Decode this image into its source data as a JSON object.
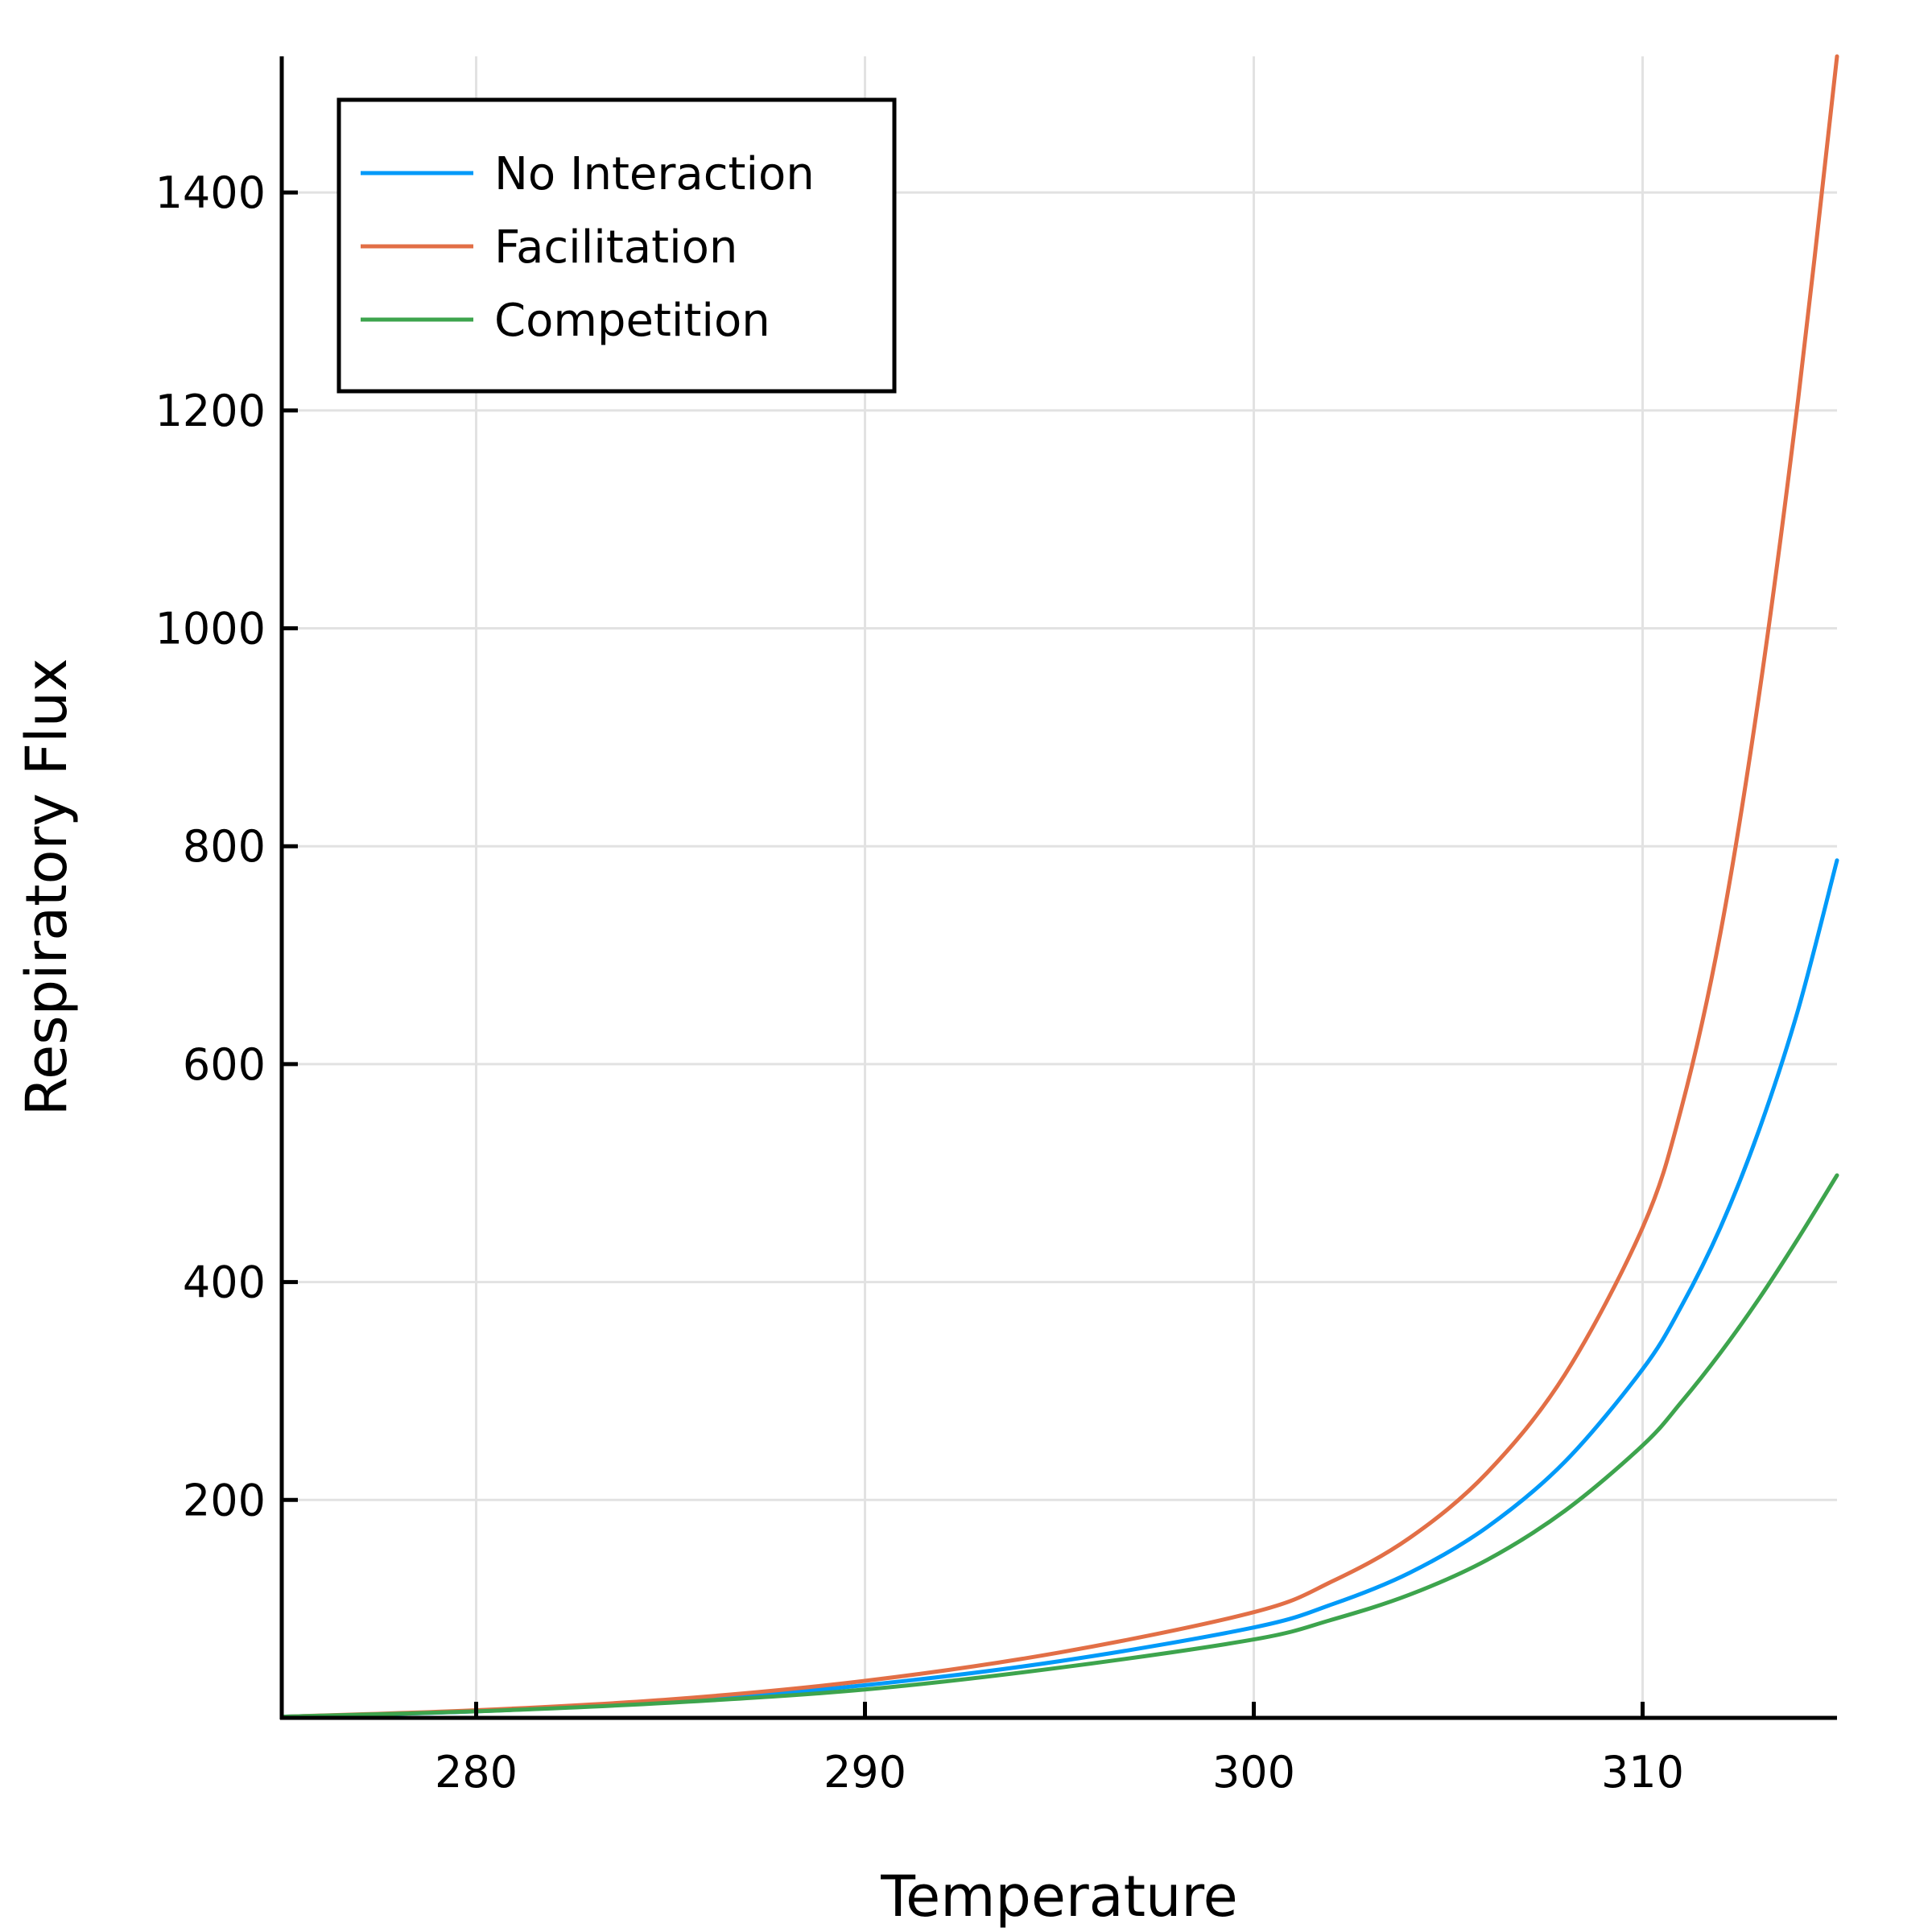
{
  "chart_data": {
    "type": "line",
    "title": "",
    "xlabel": "Temperature",
    "ylabel": "Respiratory Flux",
    "xlim": [
      275,
      315
    ],
    "ylim": [
      0,
      1525
    ],
    "xticks": [
      280,
      290,
      300,
      310
    ],
    "yticks": [
      200,
      400,
      600,
      800,
      1000,
      1200,
      1400
    ],
    "grid": true,
    "legend_position": "top-left",
    "x": [
      275,
      280,
      285,
      290,
      295,
      300,
      302,
      304,
      306,
      308,
      310,
      311,
      312,
      313,
      314,
      315
    ],
    "series": [
      {
        "name": "No Interaction",
        "color": "#009af9",
        "values": [
          1,
          6,
          15,
          30,
          52,
          83,
          104,
          133,
          175,
          235,
          320,
          378,
          450,
          540,
          650,
          787
        ]
      },
      {
        "name": "Facilitation",
        "color": "#e26f46",
        "values": [
          1,
          7,
          17,
          34,
          60,
          97,
          125,
          165,
          225,
          315,
          450,
          560,
          720,
          940,
          1210,
          1525
        ]
      },
      {
        "name": "Competition",
        "color": "#3da44d",
        "values": [
          1,
          6,
          14,
          26,
          46,
          72,
          90,
          113,
          145,
          190,
          250,
          290,
          335,
          385,
          440,
          498
        ]
      }
    ]
  }
}
